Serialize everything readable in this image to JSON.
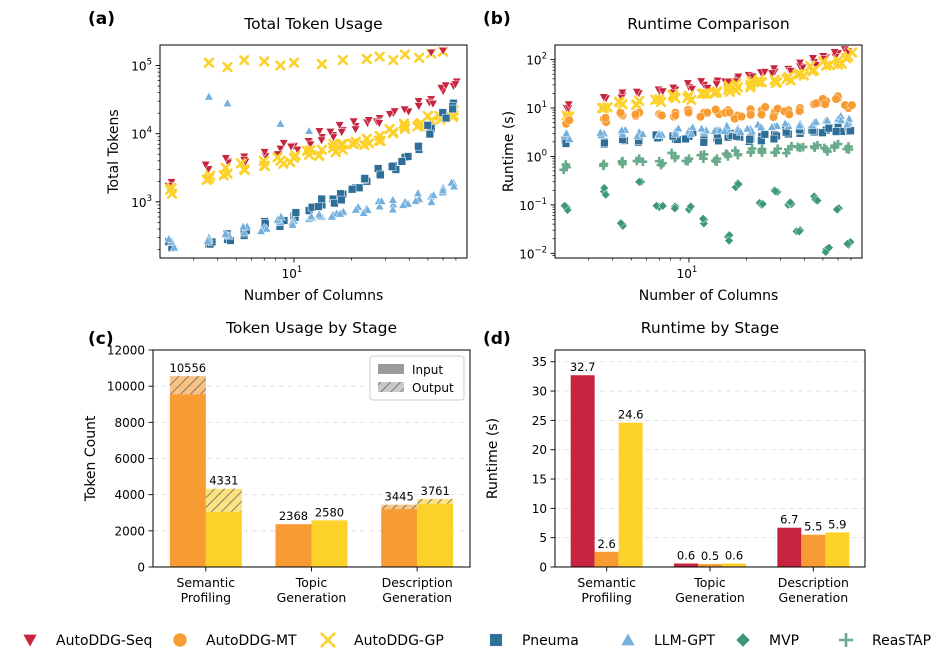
{
  "colors": {
    "AutoDDG-Seq": "#c8243f",
    "AutoDDG-MT": "#f79b32",
    "AutoDDG-GP": "#fcd12a",
    "Pneuma": "#2e6f99",
    "LLM-GPT": "#74b0dd",
    "MVP": "#3d9878",
    "ReasTAP": "#6aab8c",
    "input_gray": "#9a9a9a",
    "grid": "#dddddd"
  },
  "legend": {
    "items": [
      {
        "name": "AutoDDG-Seq",
        "icon": "triangle-down-icon"
      },
      {
        "name": "AutoDDG-MT",
        "icon": "circle-icon"
      },
      {
        "name": "AutoDDG-GP",
        "icon": "x-mark-icon"
      },
      {
        "name": "Pneuma",
        "icon": "square-icon"
      },
      {
        "name": "LLM-GPT",
        "icon": "triangle-up-icon"
      },
      {
        "name": "MVP",
        "icon": "diamond-icon"
      },
      {
        "name": "ReasTAP",
        "icon": "plus-icon"
      }
    ]
  },
  "chart_data": [
    {
      "panel": "(a)",
      "type": "scatter",
      "title": "Total Token Usage",
      "xlabel": "Number of Columns",
      "ylabel": "Total Tokens",
      "xscale": "log",
      "yscale": "log",
      "xlim": [
        2.0,
        80
      ],
      "ylim": [
        150,
        200000
      ],
      "xticks": [
        {
          "v": 10,
          "label": "10"
        }
      ],
      "yticks": [
        {
          "v": 1000,
          "label": "10"
        },
        {
          "v": 10000,
          "label": "10"
        },
        {
          "v": 100000,
          "label": "10"
        }
      ],
      "ytick_exponents": [
        "3",
        "4",
        "5"
      ],
      "xtick_exponents": [
        "1"
      ],
      "x": [
        2.3,
        3.6,
        4.5,
        5.5,
        7,
        8.5,
        10,
        12,
        14,
        16,
        18,
        21,
        24,
        28,
        33,
        38,
        45,
        52,
        60,
        68
      ],
      "series": [
        {
          "name": "AutoDDG-Seq",
          "marker": "triangle-down",
          "values": [
            1900,
            3000,
            3900,
            4600,
            5400,
            6000,
            6600,
            7600,
            8900,
            9500,
            11200,
            12900,
            14800,
            16900,
            20000,
            22700,
            26000,
            32000,
            42000,
            50000
          ]
        },
        {
          "name": "AutoDDG-GP",
          "marker": "x",
          "values": [
            1600,
            2200,
            2600,
            3000,
            3400,
            4000,
            4400,
            4900,
            5800,
            6200,
            7000,
            7600,
            8400,
            9300,
            10500,
            11800,
            13500,
            15500,
            17500,
            18500
          ]
        },
        {
          "name": "AutoDDG-GP-high",
          "marker": "x",
          "values": [
            null,
            110000,
            95000,
            120000,
            115000,
            100000,
            110000,
            null,
            105000,
            null,
            120000,
            null,
            125000,
            135000,
            120000,
            145000,
            130000,
            150000,
            160000,
            null
          ]
        },
        {
          "name": "AutoDDG-Seq-high",
          "marker": "triangle-down",
          "values": [
            null,
            null,
            null,
            null,
            null,
            null,
            null,
            null,
            null,
            null,
            null,
            null,
            null,
            null,
            null,
            null,
            null,
            155000,
            165000,
            null
          ]
        },
        {
          "name": "Pneuma",
          "marker": "square",
          "values": [
            220,
            240,
            280,
            320,
            420,
            520,
            620,
            760,
            900,
            1100,
            1300,
            1600,
            2000,
            2600,
            3400,
            4500,
            6500,
            12000,
            20000,
            28000
          ]
        },
        {
          "name": "LLM-GPT",
          "marker": "triangle-up",
          "values": [
            260,
            300,
            320,
            360,
            420,
            500,
            530,
            560,
            600,
            650,
            700,
            760,
            800,
            860,
            920,
            1000,
            1100,
            1200,
            1600,
            1900
          ]
        },
        {
          "name": "LLM-GPT-high",
          "marker": "triangle-up",
          "values": [
            null,
            35000,
            28000,
            null,
            null,
            14000,
            null,
            11000,
            null,
            null,
            null,
            null,
            null,
            null,
            null,
            null,
            null,
            null,
            null,
            null
          ]
        }
      ]
    },
    {
      "panel": "(b)",
      "type": "scatter",
      "title": "Runtime Comparison",
      "xlabel": "Number of Columns",
      "ylabel": "Runtime (s)",
      "xscale": "log",
      "yscale": "log",
      "xlim": [
        2.0,
        80
      ],
      "ylim": [
        0.008,
        200
      ],
      "xticks": [
        {
          "v": 10,
          "label": "10"
        }
      ],
      "xtick_exponents": [
        "1"
      ],
      "yticks": [
        {
          "v": 0.01,
          "label": "10"
        },
        {
          "v": 0.1,
          "label": "10"
        },
        {
          "v": 1,
          "label": "10"
        },
        {
          "v": 10,
          "label": "10"
        },
        {
          "v": 100,
          "label": "10"
        }
      ],
      "ytick_exponents": [
        "−2",
        "−1",
        "0",
        "1",
        "2"
      ],
      "x": [
        2.3,
        3.6,
        4.5,
        5.5,
        7,
        8.5,
        10,
        12,
        14,
        16,
        18,
        21,
        24,
        28,
        33,
        38,
        45,
        52,
        60,
        68
      ],
      "series": [
        {
          "name": "AutoDDG-Seq",
          "marker": "triangle-down",
          "values": [
            10,
            16,
            18,
            20,
            22,
            24,
            27,
            30,
            33,
            36,
            40,
            45,
            50,
            56,
            64,
            72,
            88,
            110,
            135,
            150
          ]
        },
        {
          "name": "AutoDDG-GP",
          "marker": "x",
          "values": [
            7,
            10,
            12,
            14,
            15,
            16,
            18,
            20,
            22,
            24,
            27,
            30,
            34,
            38,
            44,
            50,
            60,
            75,
            95,
            115
          ]
        },
        {
          "name": "AutoDDG-MT",
          "marker": "circle",
          "values": [
            5,
            6,
            7,
            8,
            7.5,
            8,
            9,
            8,
            8.5,
            9,
            7,
            8.5,
            9,
            8,
            9,
            10,
            12,
            14,
            16,
            10
          ]
        },
        {
          "name": "Pneuma",
          "marker": "square",
          "values": [
            2.2,
            2.0,
            2.4,
            2.1,
            2.5,
            2.3,
            2.6,
            2.2,
            2.4,
            2.5,
            2.7,
            2.4,
            2.6,
            2.8,
            2.9,
            3.0,
            3.2,
            3.5,
            4.0,
            4.0
          ]
        },
        {
          "name": "LLM-GPT",
          "marker": "triangle-up",
          "values": [
            2.8,
            3.0,
            2.9,
            3.2,
            3.0,
            3.3,
            3.4,
            3.1,
            3.5,
            3.6,
            3.8,
            3.7,
            4.0,
            4.2,
            4.5,
            4.8,
            5.0,
            5.5,
            6.0,
            5.0
          ]
        },
        {
          "name": "ReasTAP",
          "marker": "plus",
          "values": [
            0.6,
            0.7,
            0.8,
            0.9,
            0.8,
            1.0,
            0.9,
            1.1,
            0.9,
            1.0,
            1.1,
            1.2,
            1.3,
            1.2,
            1.4,
            1.5,
            1.6,
            1.4,
            1.8,
            1.6
          ]
        },
        {
          "name": "MVP",
          "marker": "diamond",
          "values": [
            0.09,
            0.19,
            0.04,
            0.3,
            0.09,
            0.09,
            0.08,
            0.05,
            null,
            0.022,
            0.28,
            null,
            0.1,
            0.2,
            0.1,
            0.03,
            0.15,
            0.012,
            0.08,
            0.015
          ]
        }
      ]
    },
    {
      "panel": "(c)",
      "type": "bar",
      "title": "Token Usage by Stage",
      "xlabel": "",
      "ylabel": "Token Count",
      "ylim": [
        0,
        12000
      ],
      "yticks": [
        0,
        2000,
        4000,
        6000,
        8000,
        10000,
        12000
      ],
      "categories": [
        "Semantic\nProfiling",
        "Topic\nGeneration",
        "Description\nGeneration"
      ],
      "category_labels": [
        [
          "Semantic",
          "Profiling"
        ],
        [
          "Topic",
          "Generation"
        ],
        [
          "Description",
          "Generation"
        ]
      ],
      "series": [
        {
          "name": "AutoDDG-MT",
          "input": [
            9550,
            2368,
            3200
          ],
          "output": [
            1006,
            0,
            245
          ],
          "total": [
            10556,
            2368,
            3445
          ],
          "labels": [
            "10556",
            "2368",
            "3445"
          ]
        },
        {
          "name": "AutoDDG-GP",
          "input": [
            3050,
            2580,
            3500
          ],
          "output": [
            1281,
            0,
            261
          ],
          "total": [
            4331,
            2580,
            3761
          ],
          "labels": [
            "4331",
            "2580",
            "3761"
          ]
        }
      ],
      "legend_entries": [
        {
          "label": "Input",
          "style": "solid"
        },
        {
          "label": "Output",
          "style": "hatched"
        }
      ]
    },
    {
      "panel": "(d)",
      "type": "bar",
      "title": "Runtime by Stage",
      "xlabel": "",
      "ylabel": "Runtime (s)",
      "ylim": [
        0,
        37
      ],
      "yticks": [
        0,
        5,
        10,
        15,
        20,
        25,
        30,
        35
      ],
      "categories": [
        "Semantic\nProfiling",
        "Topic\nGeneration",
        "Description\nGeneration"
      ],
      "category_labels": [
        [
          "Semantic",
          "Profiling"
        ],
        [
          "Topic",
          "Generation"
        ],
        [
          "Description",
          "Generation"
        ]
      ],
      "series": [
        {
          "name": "AutoDDG-Seq",
          "values": [
            32.7,
            0.6,
            6.7
          ],
          "labels": [
            "32.7",
            "0.6",
            "6.7"
          ]
        },
        {
          "name": "AutoDDG-MT",
          "values": [
            2.6,
            0.5,
            5.5
          ],
          "labels": [
            "2.6",
            "0.5",
            "5.5"
          ]
        },
        {
          "name": "AutoDDG-GP",
          "values": [
            24.6,
            0.6,
            5.9
          ],
          "labels": [
            "24.6",
            "0.6",
            "5.9"
          ]
        }
      ]
    }
  ]
}
